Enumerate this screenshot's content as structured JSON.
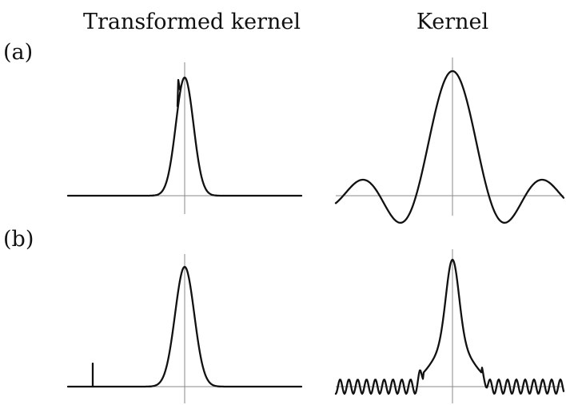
{
  "headings": {
    "left": "Transformed kernel",
    "right": "Kernel"
  },
  "rows": [
    {
      "label": "(a)",
      "panels": [
        {
          "name": "transformed-kernel",
          "shape": "gaussian peak with spike artifact just left of center"
        },
        {
          "name": "kernel",
          "shape": "sinc-like main lobe with negative dips and small side lobes"
        }
      ]
    },
    {
      "label": "(b)",
      "panels": [
        {
          "name": "transformed-kernel",
          "shape": "gaussian peak with isolated spike far left on baseline"
        },
        {
          "name": "kernel",
          "shape": "main lobe with shoulders and oscillatory ripple tails"
        }
      ]
    }
  ],
  "colors": {
    "curve": "#111111",
    "axis": "#8a8a8a",
    "background": "#ffffff"
  }
}
